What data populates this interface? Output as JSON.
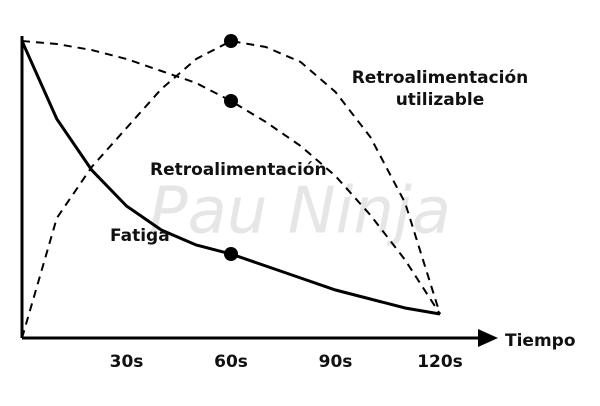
{
  "chart_data": {
    "type": "line",
    "x_label": "Tiempo",
    "watermark": "Pau Ninja",
    "x": [
      0,
      10,
      20,
      30,
      40,
      50,
      60,
      70,
      80,
      90,
      100,
      110,
      120
    ],
    "xlim": [
      0,
      120
    ],
    "xticks": [
      {
        "value": 30,
        "label": "30s"
      },
      {
        "value": 60,
        "label": "60s"
      },
      {
        "value": 90,
        "label": "90s"
      },
      {
        "value": 120,
        "label": "120s"
      }
    ],
    "ylim": [
      0,
      100
    ],
    "highlight_x": 60,
    "series": [
      {
        "name": "Fatiga",
        "color": "#000000",
        "dash": false,
        "values": [
          99,
          73,
          56,
          44,
          36,
          31,
          28,
          24,
          20,
          16,
          13,
          10,
          8
        ]
      },
      {
        "name": "Retroalimentación",
        "color": "#000000",
        "dash": true,
        "values": [
          99,
          98,
          96,
          93,
          89,
          85,
          79,
          72,
          64,
          54,
          41,
          26,
          8
        ]
      },
      {
        "name": "Retroalimentación utilizable",
        "color": "#000000",
        "dash": true,
        "values": [
          0,
          40,
          57,
          70,
          83,
          93,
          99,
          97,
          92,
          82,
          67,
          45,
          8
        ]
      }
    ]
  }
}
